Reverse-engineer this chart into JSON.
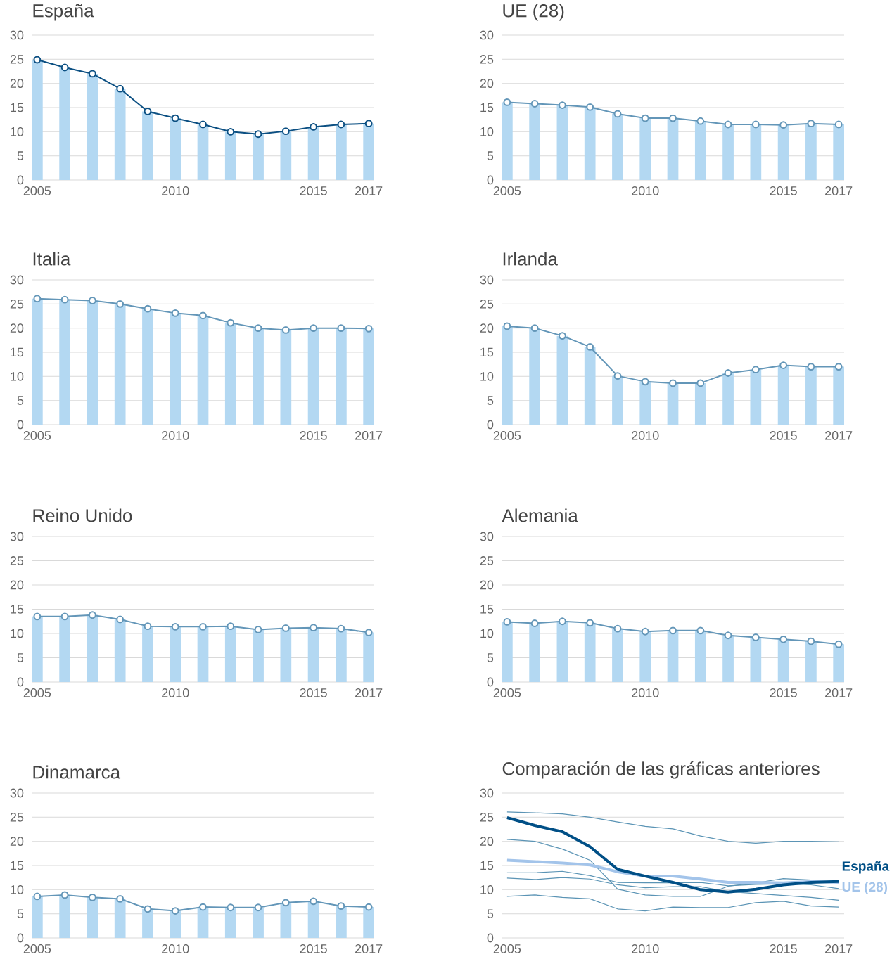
{
  "chart_data": [
    {
      "type": "bar",
      "title": "España",
      "x": [
        2005,
        2006,
        2007,
        2008,
        2009,
        2010,
        2011,
        2012,
        2013,
        2014,
        2015,
        2016,
        2017
      ],
      "xlim": [
        2004.8,
        2017.2
      ],
      "xticks": [
        2005,
        2010,
        2015,
        2017
      ],
      "ylim": [
        0,
        30
      ],
      "yticks": [
        0,
        5,
        10,
        15,
        20,
        25,
        30
      ],
      "grid": "y",
      "marker": "circle",
      "line_style": "solid",
      "series": [
        {
          "type": "bar",
          "color": "#b3d8f2",
          "values": [
            24.9,
            23.3,
            22.0,
            18.9,
            14.2,
            12.8,
            11.5,
            10.0,
            9.5,
            10.1,
            11.0,
            11.5,
            11.7
          ]
        },
        {
          "type": "line",
          "color": "#0b4f82",
          "values": [
            24.9,
            23.3,
            22.0,
            18.9,
            14.2,
            12.8,
            11.5,
            10.0,
            9.5,
            10.1,
            11.0,
            11.5,
            11.7
          ]
        }
      ]
    },
    {
      "type": "bar",
      "title": "UE (28)",
      "x": [
        2005,
        2006,
        2007,
        2008,
        2009,
        2010,
        2011,
        2012,
        2013,
        2014,
        2015,
        2016,
        2017
      ],
      "xlim": [
        2004.8,
        2017.2
      ],
      "xticks": [
        2005,
        2010,
        2015,
        2017
      ],
      "ylim": [
        0,
        30
      ],
      "yticks": [
        0,
        5,
        10,
        15,
        20,
        25,
        30
      ],
      "grid": "y",
      "marker": "circle",
      "line_style": "solid",
      "series": [
        {
          "type": "bar",
          "color": "#b3d8f2",
          "values": [
            16.1,
            15.8,
            15.5,
            15.1,
            13.7,
            12.8,
            12.8,
            12.2,
            11.5,
            11.5,
            11.4,
            11.7,
            11.5
          ]
        },
        {
          "type": "line",
          "color": "#6396b8",
          "values": [
            16.1,
            15.8,
            15.5,
            15.1,
            13.7,
            12.8,
            12.8,
            12.2,
            11.5,
            11.5,
            11.4,
            11.7,
            11.5
          ]
        }
      ]
    },
    {
      "type": "bar",
      "title": "Italia",
      "x": [
        2005,
        2006,
        2007,
        2008,
        2009,
        2010,
        2011,
        2012,
        2013,
        2014,
        2015,
        2016,
        2017
      ],
      "xlim": [
        2004.8,
        2017.2
      ],
      "xticks": [
        2005,
        2010,
        2015,
        2017
      ],
      "ylim": [
        0,
        30
      ],
      "yticks": [
        0,
        5,
        10,
        15,
        20,
        25,
        30
      ],
      "grid": "y",
      "marker": "circle",
      "line_style": "solid",
      "series": [
        {
          "type": "bar",
          "color": "#b3d8f2",
          "values": [
            26.1,
            25.9,
            25.7,
            25.0,
            24.0,
            23.1,
            22.6,
            21.1,
            20.0,
            19.6,
            20.0,
            20.0,
            19.9
          ]
        },
        {
          "type": "line",
          "color": "#6396b8",
          "values": [
            26.1,
            25.9,
            25.7,
            25.0,
            24.0,
            23.1,
            22.6,
            21.1,
            20.0,
            19.6,
            20.0,
            20.0,
            19.9
          ]
        }
      ]
    },
    {
      "type": "bar",
      "title": "Irlanda",
      "x": [
        2005,
        2006,
        2007,
        2008,
        2009,
        2010,
        2011,
        2012,
        2013,
        2014,
        2015,
        2016,
        2017
      ],
      "xlim": [
        2004.8,
        2017.2
      ],
      "xticks": [
        2005,
        2010,
        2015,
        2017
      ],
      "ylim": [
        0,
        30
      ],
      "yticks": [
        0,
        5,
        10,
        15,
        20,
        25,
        30
      ],
      "grid": "y",
      "marker": "circle",
      "line_style": "solid",
      "series": [
        {
          "type": "bar",
          "color": "#b3d8f2",
          "values": [
            20.4,
            20.0,
            18.4,
            16.1,
            10.1,
            8.9,
            8.6,
            8.6,
            10.7,
            11.4,
            12.3,
            12.0,
            12.0
          ]
        },
        {
          "type": "line",
          "color": "#6396b8",
          "values": [
            20.4,
            20.0,
            18.4,
            16.1,
            10.1,
            8.9,
            8.6,
            8.6,
            10.7,
            11.4,
            12.3,
            12.0,
            12.0
          ]
        }
      ]
    },
    {
      "type": "bar",
      "title": "Reino Unido",
      "x": [
        2005,
        2006,
        2007,
        2008,
        2009,
        2010,
        2011,
        2012,
        2013,
        2014,
        2015,
        2016,
        2017
      ],
      "xlim": [
        2004.8,
        2017.2
      ],
      "xticks": [
        2005,
        2010,
        2015,
        2017
      ],
      "ylim": [
        0,
        30
      ],
      "yticks": [
        0,
        5,
        10,
        15,
        20,
        25,
        30
      ],
      "grid": "y",
      "marker": "circle",
      "line_style": "solid",
      "series": [
        {
          "type": "bar",
          "color": "#b3d8f2",
          "values": [
            13.5,
            13.5,
            13.8,
            12.9,
            11.5,
            11.4,
            11.4,
            11.5,
            10.8,
            11.1,
            11.2,
            11.0,
            10.2
          ]
        },
        {
          "type": "line",
          "color": "#6396b8",
          "values": [
            13.5,
            13.5,
            13.8,
            12.9,
            11.5,
            11.4,
            11.4,
            11.5,
            10.8,
            11.1,
            11.2,
            11.0,
            10.2
          ]
        }
      ]
    },
    {
      "type": "bar",
      "title": "Alemania",
      "x": [
        2005,
        2006,
        2007,
        2008,
        2009,
        2010,
        2011,
        2012,
        2013,
        2014,
        2015,
        2016,
        2017
      ],
      "xlim": [
        2004.8,
        2017.2
      ],
      "xticks": [
        2005,
        2010,
        2015,
        2017
      ],
      "ylim": [
        0,
        30
      ],
      "yticks": [
        0,
        5,
        10,
        15,
        20,
        25,
        30
      ],
      "grid": "y",
      "marker": "circle",
      "line_style": "solid",
      "series": [
        {
          "type": "bar",
          "color": "#b3d8f2",
          "values": [
            12.4,
            12.1,
            12.5,
            12.2,
            11.0,
            10.4,
            10.6,
            10.6,
            9.6,
            9.2,
            8.8,
            8.4,
            7.8
          ]
        },
        {
          "type": "line",
          "color": "#6396b8",
          "values": [
            12.4,
            12.1,
            12.5,
            12.2,
            11.0,
            10.4,
            10.6,
            10.6,
            9.6,
            9.2,
            8.8,
            8.4,
            7.8
          ]
        }
      ]
    },
    {
      "type": "bar",
      "title": "Dinamarca",
      "x": [
        2005,
        2006,
        2007,
        2008,
        2009,
        2010,
        2011,
        2012,
        2013,
        2014,
        2015,
        2016,
        2017
      ],
      "xlim": [
        2004.8,
        2017.2
      ],
      "xticks": [
        2005,
        2010,
        2015,
        2017
      ],
      "ylim": [
        0,
        30
      ],
      "yticks": [
        0,
        5,
        10,
        15,
        20,
        25,
        30
      ],
      "grid": "y",
      "marker": "circle",
      "line_style": "solid",
      "series": [
        {
          "type": "bar",
          "color": "#b3d8f2",
          "values": [
            8.6,
            8.9,
            8.4,
            8.1,
            6.0,
            5.6,
            6.4,
            6.3,
            6.3,
            7.3,
            7.6,
            6.6,
            6.4
          ]
        },
        {
          "type": "line",
          "color": "#6396b8",
          "values": [
            8.6,
            8.9,
            8.4,
            8.1,
            6.0,
            5.6,
            6.4,
            6.3,
            6.3,
            7.3,
            7.6,
            6.6,
            6.4
          ]
        }
      ]
    },
    {
      "type": "line",
      "title": "Comparación de las gráficas anteriores",
      "x": [
        2005,
        2006,
        2007,
        2008,
        2009,
        2010,
        2011,
        2012,
        2013,
        2014,
        2015,
        2016,
        2017
      ],
      "xlim": [
        2004.8,
        2017.2
      ],
      "xticks": [
        2005,
        2010,
        2015,
        2017
      ],
      "ylim": [
        0,
        30
      ],
      "yticks": [
        0,
        5,
        10,
        15,
        20,
        25,
        30
      ],
      "grid": "y",
      "line_style": "solid",
      "series": [
        {
          "color": "#5b94b5",
          "values": [
            26.1,
            25.9,
            25.7,
            25.0,
            24.0,
            23.1,
            22.6,
            21.1,
            20.0,
            19.6,
            20.0,
            20.0,
            19.9
          ]
        },
        {
          "color": "#5b94b5",
          "values": [
            20.4,
            20.0,
            18.4,
            16.1,
            10.1,
            8.9,
            8.6,
            8.6,
            10.7,
            11.4,
            12.3,
            12.0,
            12.0
          ]
        },
        {
          "color": "#5b94b5",
          "values": [
            13.5,
            13.5,
            13.8,
            12.9,
            11.5,
            11.4,
            11.4,
            11.5,
            10.8,
            11.1,
            11.2,
            11.0,
            10.2
          ]
        },
        {
          "color": "#5b94b5",
          "values": [
            12.4,
            12.1,
            12.5,
            12.2,
            11.0,
            10.4,
            10.6,
            10.6,
            9.6,
            9.2,
            8.8,
            8.4,
            7.8
          ]
        },
        {
          "color": "#5b94b5",
          "values": [
            8.6,
            8.9,
            8.4,
            8.1,
            6.0,
            5.6,
            6.4,
            6.3,
            6.3,
            7.3,
            7.6,
            6.6,
            6.4
          ]
        },
        {
          "name": "UE (28)",
          "color": "#a3c4ea",
          "values": [
            16.1,
            15.8,
            15.5,
            15.1,
            13.7,
            12.8,
            12.8,
            12.2,
            11.5,
            11.5,
            11.4,
            11.7,
            11.5
          ]
        },
        {
          "name": "España",
          "color": "#004f86",
          "values": [
            24.9,
            23.3,
            22.0,
            18.9,
            14.2,
            12.8,
            11.5,
            10.0,
            9.5,
            10.1,
            11.0,
            11.5,
            11.7
          ]
        }
      ]
    }
  ]
}
